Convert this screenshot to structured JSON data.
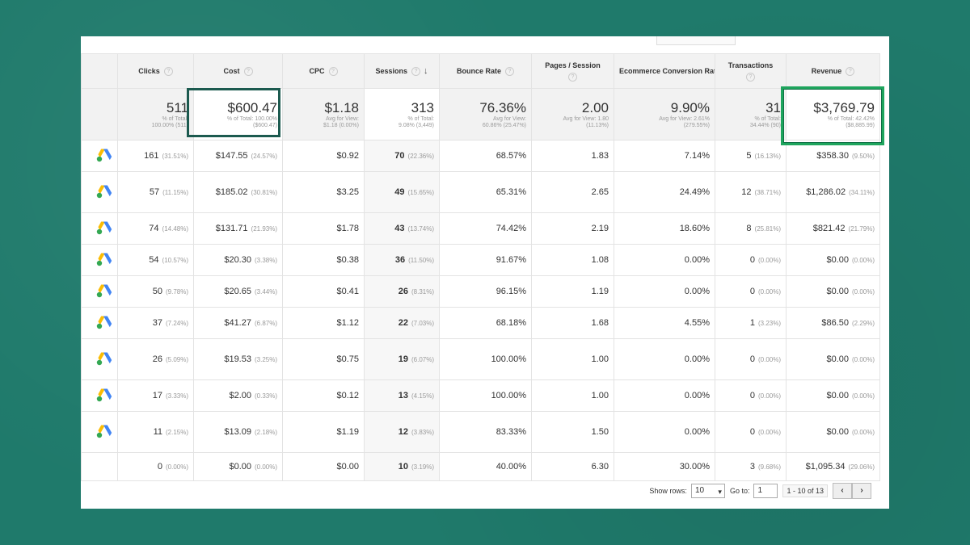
{
  "headers": [
    {
      "label": "Clicks"
    },
    {
      "label": "Cost"
    },
    {
      "label": "CPC"
    },
    {
      "label": "Sessions"
    },
    {
      "label": "Bounce Rate"
    },
    {
      "label": "Pages / Session"
    },
    {
      "label": "Ecommerce Conversion Rate"
    },
    {
      "label": "Transactions"
    },
    {
      "label": "Revenue"
    }
  ],
  "totals": [
    {
      "value": "511",
      "sub1": "% of Total:",
      "sub2": "100.00% (511)"
    },
    {
      "value": "$600.47",
      "sub1": "% of Total: 100.00%",
      "sub2": "($600.47)"
    },
    {
      "value": "$1.18",
      "sub1": "Avg for View:",
      "sub2": "$1.18 (0.00%)"
    },
    {
      "value": "313",
      "sub1": "% of Total:",
      "sub2": "9.08% (3,449)"
    },
    {
      "value": "76.36%",
      "sub1": "Avg for View:",
      "sub2": "60.86% (25.47%)"
    },
    {
      "value": "2.00",
      "sub1": "Avg for View: 1.80",
      "sub2": "(11.13%)"
    },
    {
      "value": "9.90%",
      "sub1": "Avg for View: 2.61%",
      "sub2": "(279.55%)"
    },
    {
      "value": "31",
      "sub1": "% of Total:",
      "sub2": "34.44% (90)"
    },
    {
      "value": "$3,769.79",
      "sub1": "% of Total: 42.42%",
      "sub2": "($8,885.99)"
    }
  ],
  "rows": [
    {
      "clicks": "161",
      "clicks_pct": "(31.51%)",
      "cost": "$147.55",
      "cost_pct": "(24.57%)",
      "cpc": "$0.92",
      "sessions": "70",
      "sessions_pct": "(22.36%)",
      "bounce": "68.57%",
      "pages": "1.83",
      "conv": "7.14%",
      "trans": "5",
      "trans_pct": "(16.13%)",
      "revenue": "$358.30",
      "revenue_pct": "(9.50%)"
    },
    {
      "clicks": "57",
      "clicks_pct": "(11.15%)",
      "cost": "$185.02",
      "cost_pct": "(30.81%)",
      "cpc": "$3.25",
      "sessions": "49",
      "sessions_pct": "(15.65%)",
      "bounce": "65.31%",
      "pages": "2.65",
      "conv": "24.49%",
      "trans": "12",
      "trans_pct": "(38.71%)",
      "revenue": "$1,286.02",
      "revenue_pct": "(34.11%)"
    },
    {
      "clicks": "74",
      "clicks_pct": "(14.48%)",
      "cost": "$131.71",
      "cost_pct": "(21.93%)",
      "cpc": "$1.78",
      "sessions": "43",
      "sessions_pct": "(13.74%)",
      "bounce": "74.42%",
      "pages": "2.19",
      "conv": "18.60%",
      "trans": "8",
      "trans_pct": "(25.81%)",
      "revenue": "$821.42",
      "revenue_pct": "(21.79%)"
    },
    {
      "clicks": "54",
      "clicks_pct": "(10.57%)",
      "cost": "$20.30",
      "cost_pct": "(3.38%)",
      "cpc": "$0.38",
      "sessions": "36",
      "sessions_pct": "(11.50%)",
      "bounce": "91.67%",
      "pages": "1.08",
      "conv": "0.00%",
      "trans": "0",
      "trans_pct": "(0.00%)",
      "revenue": "$0.00",
      "revenue_pct": "(0.00%)"
    },
    {
      "clicks": "50",
      "clicks_pct": "(9.78%)",
      "cost": "$20.65",
      "cost_pct": "(3.44%)",
      "cpc": "$0.41",
      "sessions": "26",
      "sessions_pct": "(8.31%)",
      "bounce": "96.15%",
      "pages": "1.19",
      "conv": "0.00%",
      "trans": "0",
      "trans_pct": "(0.00%)",
      "revenue": "$0.00",
      "revenue_pct": "(0.00%)"
    },
    {
      "clicks": "37",
      "clicks_pct": "(7.24%)",
      "cost": "$41.27",
      "cost_pct": "(6.87%)",
      "cpc": "$1.12",
      "sessions": "22",
      "sessions_pct": "(7.03%)",
      "bounce": "68.18%",
      "pages": "1.68",
      "conv": "4.55%",
      "trans": "1",
      "trans_pct": "(3.23%)",
      "revenue": "$86.50",
      "revenue_pct": "(2.29%)"
    },
    {
      "clicks": "26",
      "clicks_pct": "(5.09%)",
      "cost": "$19.53",
      "cost_pct": "(3.25%)",
      "cpc": "$0.75",
      "sessions": "19",
      "sessions_pct": "(6.07%)",
      "bounce": "100.00%",
      "pages": "1.00",
      "conv": "0.00%",
      "trans": "0",
      "trans_pct": "(0.00%)",
      "revenue": "$0.00",
      "revenue_pct": "(0.00%)"
    },
    {
      "clicks": "17",
      "clicks_pct": "(3.33%)",
      "cost": "$2.00",
      "cost_pct": "(0.33%)",
      "cpc": "$0.12",
      "sessions": "13",
      "sessions_pct": "(4.15%)",
      "bounce": "100.00%",
      "pages": "1.00",
      "conv": "0.00%",
      "trans": "0",
      "trans_pct": "(0.00%)",
      "revenue": "$0.00",
      "revenue_pct": "(0.00%)"
    },
    {
      "clicks": "11",
      "clicks_pct": "(2.15%)",
      "cost": "$13.09",
      "cost_pct": "(2.18%)",
      "cpc": "$1.19",
      "sessions": "12",
      "sessions_pct": "(3.83%)",
      "bounce": "83.33%",
      "pages": "1.50",
      "conv": "0.00%",
      "trans": "0",
      "trans_pct": "(0.00%)",
      "revenue": "$0.00",
      "revenue_pct": "(0.00%)"
    },
    {
      "clicks": "0",
      "clicks_pct": "(0.00%)",
      "cost": "$0.00",
      "cost_pct": "(0.00%)",
      "cpc": "$0.00",
      "sessions": "10",
      "sessions_pct": "(3.19%)",
      "bounce": "40.00%",
      "pages": "6.30",
      "conv": "30.00%",
      "trans": "3",
      "trans_pct": "(9.68%)",
      "revenue": "$1,095.34",
      "revenue_pct": "(29.06%)"
    }
  ],
  "row_icons": [
    true,
    true,
    true,
    true,
    true,
    true,
    true,
    true,
    true,
    false
  ],
  "footer": {
    "show_rows_label": "Show rows:",
    "show_rows_value": "10",
    "goto_label": "Go to:",
    "goto_value": "1",
    "range": "1 - 10 of 13",
    "prev": "‹",
    "next": "›"
  },
  "colors": {
    "background": "#1f7a6b",
    "highlight_dark": "#1c5a4f",
    "highlight_green": "#1ea55d"
  }
}
